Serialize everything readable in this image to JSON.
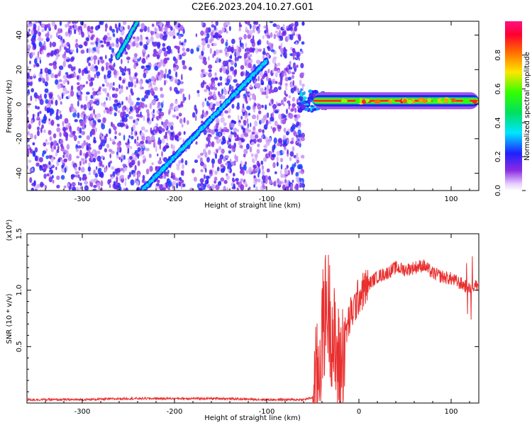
{
  "figure": {
    "title": "C2E6.2023.204.10.27.G01"
  },
  "colors": {
    "snr_line": "#e8302f",
    "axis": "#000000",
    "spectrogram_noise": "#7b1ff2",
    "spectrogram_background": "#ffffff"
  },
  "chart_data": [
    {
      "type": "heatmap",
      "xlabel": "Height of straight line (km)",
      "ylabel": "Frequency (Hz)",
      "xlim": [
        -360,
        130
      ],
      "ylim": [
        -50,
        48
      ],
      "x_ticks": [
        -300,
        -200,
        -100,
        0,
        100
      ],
      "y_ticks": [
        -40,
        -20,
        0,
        20,
        40
      ],
      "colorbar": {
        "label": "Normalized spectral amplitude",
        "range": [
          0,
          1
        ],
        "ticks": [
          0.0,
          0.2,
          0.4,
          0.6,
          0.8
        ],
        "colormap": "rainbow (violet-blue-cyan-green-yellow-red-magenta)"
      },
      "features": [
        {
          "name": "steep chirp",
          "x": [
            -262,
            -240
          ],
          "y": [
            27,
            48
          ]
        },
        {
          "name": "main chirp",
          "x": [
            -235,
            -100
          ],
          "y": [
            -50,
            25
          ]
        },
        {
          "name": "carrier",
          "x": [
            -65,
            130
          ],
          "y": [
            2,
            2
          ],
          "amplitude": 0.85
        },
        {
          "name": "noise floor",
          "x": [
            -360,
            -60
          ],
          "y": [
            -50,
            48
          ],
          "amplitude": 0.35
        }
      ]
    },
    {
      "type": "line",
      "xlabel": "Height of straight line (km)",
      "ylabel": "SNR (10 * v/v)",
      "y_scale_label": "(x10⁴)",
      "xlim": [
        -360,
        130
      ],
      "ylim": [
        0,
        1.5
      ],
      "x_ticks": [
        -300,
        -200,
        -100,
        0,
        100
      ],
      "y_ticks": [
        0.5,
        1.0,
        1.5
      ],
      "y_tick_labels": [
        "0.5",
        "1.0",
        "1.5"
      ],
      "series": [
        {
          "x": [
            -360,
            -300,
            -250,
            -200,
            -150,
            -100,
            -60,
            -50,
            -45,
            -40,
            -35,
            -30,
            -25,
            -20,
            -15,
            -10,
            -5,
            0,
            10,
            20,
            30,
            40,
            50,
            60,
            70,
            80,
            90,
            100,
            110,
            120,
            130
          ],
          "values": [
            0.03,
            0.03,
            0.04,
            0.04,
            0.04,
            0.03,
            0.03,
            0.05,
            0.2,
            0.6,
            0.9,
            0.7,
            0.4,
            0.3,
            0.6,
            0.75,
            0.85,
            0.95,
            1.05,
            1.12,
            1.15,
            1.2,
            1.18,
            1.2,
            1.22,
            1.15,
            1.12,
            1.1,
            1.06,
            1.02,
            1.05
          ]
        }
      ]
    }
  ]
}
